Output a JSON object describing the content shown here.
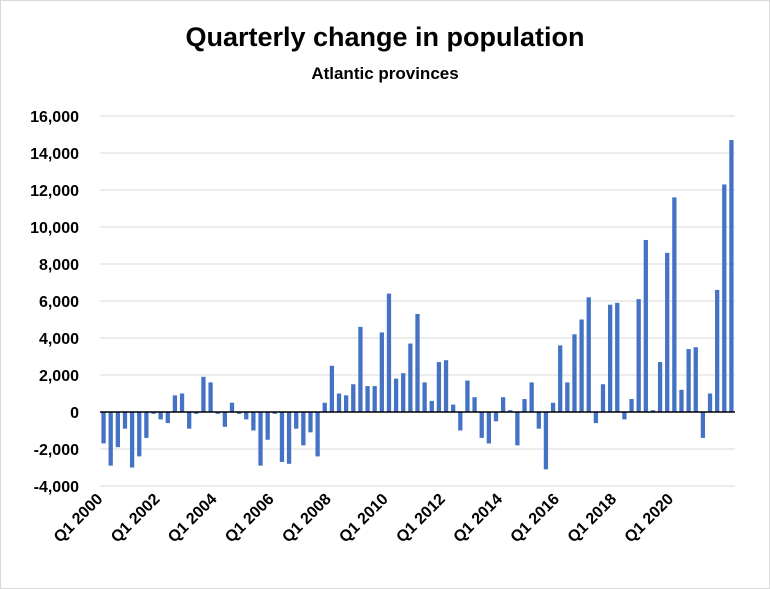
{
  "chart_data": {
    "type": "bar",
    "title": "Quarterly change in population",
    "subtitle": "Atlantic provinces",
    "xlabel": "",
    "ylabel": "",
    "ylim": [
      -4000,
      16000
    ],
    "y_ticks": [
      "16,000",
      "14,000",
      "12,000",
      "10,000",
      "8,000",
      "6,000",
      "4,000",
      "2,000",
      "0",
      "-2,000",
      "-4,000"
    ],
    "y_tick_values": [
      16000,
      14000,
      12000,
      10000,
      8000,
      6000,
      4000,
      2000,
      0,
      -2000,
      -4000
    ],
    "x_tick_labels": [
      {
        "label": "Q1 2000",
        "index": 0
      },
      {
        "label": "Q1 2002",
        "index": 8
      },
      {
        "label": "Q1 2004",
        "index": 16
      },
      {
        "label": "Q1 2006",
        "index": 24
      },
      {
        "label": "Q1 2008",
        "index": 32
      },
      {
        "label": "Q1 2010",
        "index": 40
      },
      {
        "label": "Q1 2012",
        "index": 48
      },
      {
        "label": "Q1 2014",
        "index": 56
      },
      {
        "label": "Q1 2016",
        "index": 64
      },
      {
        "label": "Q1 2018",
        "index": 72
      },
      {
        "label": "Q1 2020",
        "index": 80
      }
    ],
    "grid": true,
    "bar_color": "#4472c4",
    "series": [
      {
        "values": [
          -1700,
          -2900,
          -1900,
          -900,
          -3000,
          -2400,
          -1400,
          -100,
          -400,
          -600,
          900,
          1000,
          -900,
          -100,
          1900,
          1600,
          -100,
          -800,
          500,
          -100,
          -400,
          -1000,
          -2900,
          -1500,
          -100,
          -2700,
          -2800,
          -900,
          -1800,
          -1100,
          -2400,
          500,
          2500,
          1000,
          900,
          1500,
          4600,
          1400,
          1400,
          4300,
          6400,
          1800,
          2100,
          3700,
          5300,
          1600,
          600,
          2700,
          2800,
          400,
          -1000,
          1700,
          800,
          -1400,
          -1700,
          -500,
          800,
          100,
          -1800,
          700,
          1600,
          -900,
          -3100,
          500,
          3600,
          1600,
          4200,
          5000,
          6200,
          -600,
          1500,
          5800,
          5900,
          -400,
          700,
          6100,
          9300,
          100,
          2700,
          8600,
          11600,
          1200,
          3400,
          3500,
          -1400,
          1000,
          6600,
          12300,
          14700
        ]
      }
    ]
  }
}
